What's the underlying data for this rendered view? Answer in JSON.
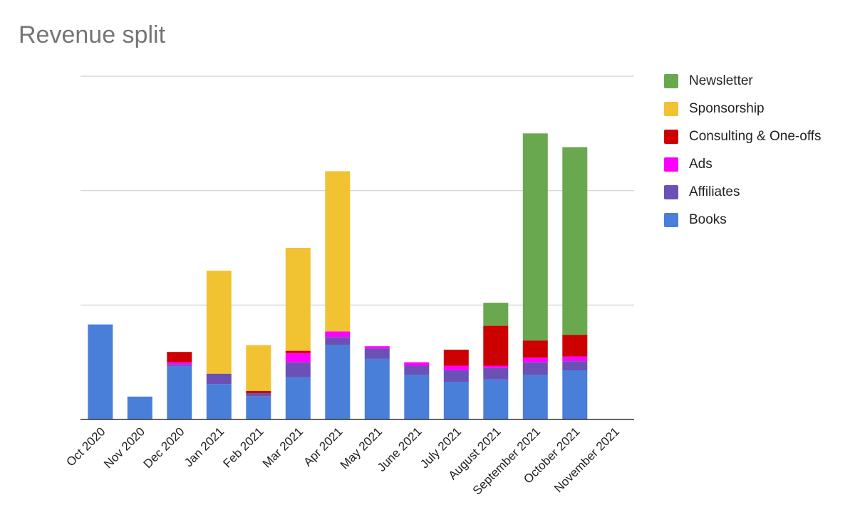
{
  "chart_data": {
    "type": "bar",
    "stacked": true,
    "title": "Revenue split",
    "xlabel": "",
    "ylabel": "",
    "ylim": [
      0,
      3
    ],
    "gridlines": [
      0,
      1,
      2,
      3
    ],
    "legend_position": "right",
    "categories": [
      "Oct 2020",
      "Nov 2020",
      "Dec 2020",
      "Jan 2021",
      "Feb 2021",
      "Mar 2021",
      "Apr 2021",
      "May 2021",
      "June 2021",
      "July 2021",
      "August 2021",
      "September 2021",
      "October 2021",
      "November 2021"
    ],
    "series": [
      {
        "name": "Books",
        "color": "#4a7fd9",
        "values": [
          0.83,
          0.2,
          0.47,
          0.31,
          0.2,
          0.37,
          0.65,
          0.53,
          0.39,
          0.33,
          0.35,
          0.39,
          0.43,
          0
        ]
      },
      {
        "name": "Affiliates",
        "color": "#6b51b5",
        "values": [
          0,
          0,
          0.01,
          0.09,
          0.03,
          0.13,
          0.07,
          0.09,
          0.08,
          0.1,
          0.1,
          0.11,
          0.08,
          0
        ]
      },
      {
        "name": "Ads",
        "color": "#ff00ff",
        "values": [
          0,
          0,
          0.02,
          0,
          0,
          0.08,
          0.05,
          0.02,
          0.03,
          0.04,
          0.02,
          0.04,
          0.04,
          0
        ]
      },
      {
        "name": "Consulting & One-offs",
        "color": "#cc0000",
        "values": [
          0,
          0,
          0.09,
          0,
          0.02,
          0.02,
          0,
          0,
          0,
          0.14,
          0.35,
          0.15,
          0.19,
          0
        ]
      },
      {
        "name": "Sponsorship",
        "color": "#f1c232",
        "values": [
          0,
          0,
          0,
          0.9,
          0.4,
          0.9,
          1.4,
          0,
          0,
          0,
          0,
          0,
          0,
          0
        ]
      },
      {
        "name": "Newsletter",
        "color": "#6aa84f",
        "values": [
          0,
          0,
          0,
          0,
          0,
          0,
          0,
          0,
          0,
          0,
          0.2,
          1.81,
          1.64,
          0
        ]
      }
    ],
    "legend_order": [
      "Newsletter",
      "Sponsorship",
      "Consulting & One-offs",
      "Ads",
      "Affiliates",
      "Books"
    ]
  }
}
